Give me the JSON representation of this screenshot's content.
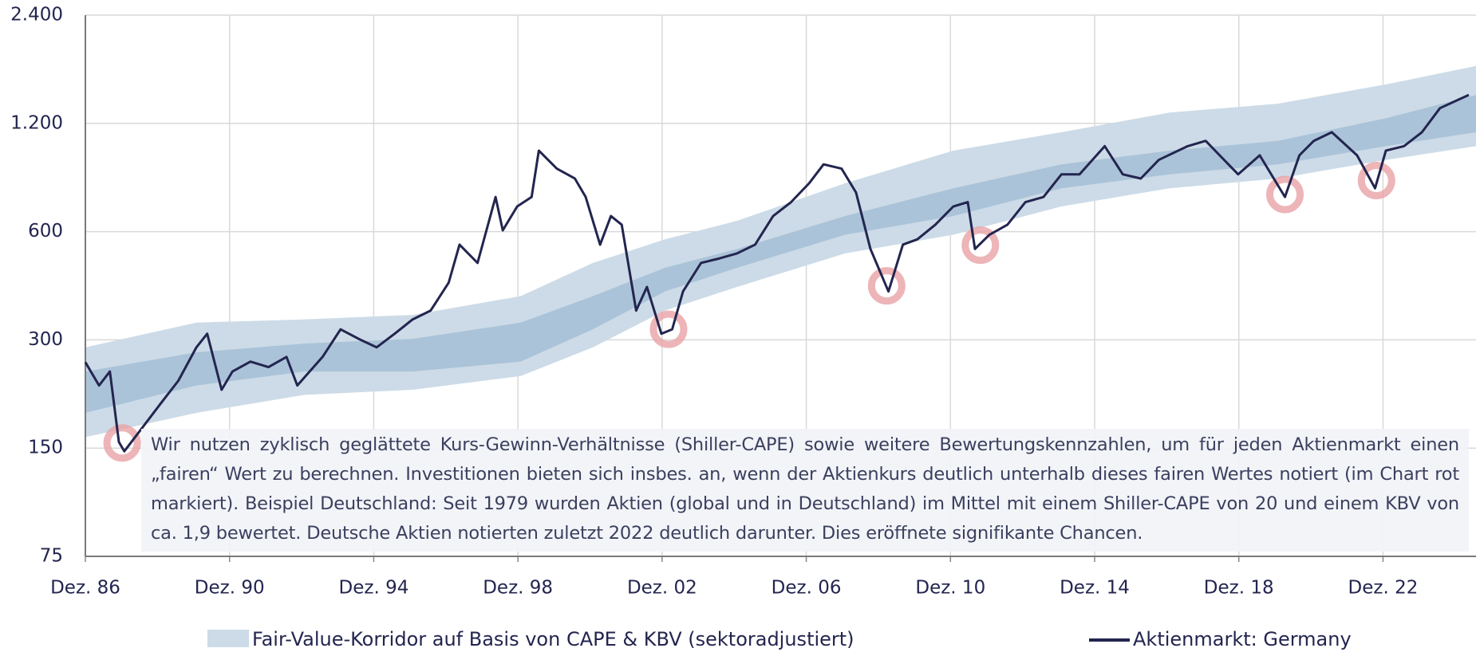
{
  "chart_data": {
    "type": "line",
    "yscale": "log",
    "ylim": [
      75,
      2400
    ],
    "yticks": [
      75,
      150,
      300,
      600,
      {
        "value": 1200,
        "label": "1.200"
      },
      {
        "value": 2400,
        "label": "2.400"
      }
    ],
    "xlim": [
      1986.92,
      2025.5
    ],
    "xticks": [
      {
        "value": 1986.92,
        "label": "Dez. 86"
      },
      {
        "value": 1990.92,
        "label": "Dez. 90"
      },
      {
        "value": 1994.92,
        "label": "Dez. 94"
      },
      {
        "value": 1998.92,
        "label": "Dez. 98"
      },
      {
        "value": 2002.92,
        "label": "Dez. 02"
      },
      {
        "value": 2006.92,
        "label": "Dez. 06"
      },
      {
        "value": 2010.92,
        "label": "Dez. 10"
      },
      {
        "value": 2014.92,
        "label": "Dez. 14"
      },
      {
        "value": 2018.92,
        "label": "Dez. 18"
      },
      {
        "value": 2022.92,
        "label": "Dez. 22"
      }
    ],
    "grid": true,
    "band": {
      "name": "Fair-Value-Korridor auf Basis von CAPE & KBV (sektoradjustiert)",
      "color_outer": "#ccdbe7",
      "color_inner": "#abc3d8",
      "x": [
        1986.92,
        1990,
        1993,
        1996,
        1999,
        2001,
        2003,
        2005,
        2008,
        2011,
        2014,
        2017,
        2020,
        2023,
        2025.5
      ],
      "upper": [
        286,
        335,
        342,
        352,
        397,
        491,
        571,
        643,
        818,
        1008,
        1134,
        1286,
        1361,
        1540,
        1733
      ],
      "lower": [
        161,
        188,
        211,
        218,
        238,
        286,
        362,
        421,
        522,
        588,
        705,
        792,
        843,
        950,
        1037
      ],
      "inner_upper": [
        245,
        277,
        293,
        302,
        335,
        397,
        476,
        537,
        663,
        792,
        923,
        1008,
        1073,
        1240,
        1440
      ],
      "inner_lower": [
        188,
        224,
        245,
        245,
        261,
        321,
        409,
        476,
        588,
        663,
        792,
        866,
        923,
        1037,
        1134
      ]
    },
    "series": [
      {
        "name": "Aktienmarkt: Germany",
        "color": "#23254f",
        "x": [
          1986.92,
          1987.3,
          1987.6,
          1987.85,
          1988.0,
          1988.5,
          1989.0,
          1989.5,
          1990.0,
          1990.3,
          1990.7,
          1991.0,
          1991.5,
          1992.0,
          1992.5,
          1992.8,
          1993.5,
          1994.0,
          1994.5,
          1995.0,
          1995.5,
          1996.0,
          1996.5,
          1997.0,
          1997.3,
          1997.8,
          1998.3,
          1998.5,
          1998.9,
          1999.3,
          1999.5,
          2000.0,
          2000.5,
          2000.8,
          2001.2,
          2001.5,
          2001.8,
          2002.2,
          2002.5,
          2002.9,
          2003.2,
          2003.5,
          2004.0,
          2004.5,
          2005.0,
          2005.5,
          2006.0,
          2006.5,
          2007.0,
          2007.4,
          2007.9,
          2008.3,
          2008.7,
          2009.2,
          2009.6,
          2010.0,
          2010.5,
          2011.0,
          2011.4,
          2011.6,
          2012.0,
          2012.5,
          2013.0,
          2013.5,
          2014.0,
          2014.5,
          2015.2,
          2015.7,
          2016.2,
          2016.7,
          2017.5,
          2018.0,
          2018.9,
          2019.5,
          2020.2,
          2020.6,
          2021.0,
          2021.5,
          2022.2,
          2022.7,
          2023.0,
          2023.5,
          2024.0,
          2024.5,
          2025.3
        ],
        "values": [
          260,
          224,
          245,
          156,
          147,
          171,
          199,
          231,
          286,
          312,
          218,
          245,
          261,
          252,
          269,
          224,
          269,
          321,
          302,
          286,
          312,
          342,
          362,
          433,
          552,
          491,
          749,
          605,
          705,
          749,
          1008,
          898,
          843,
          749,
          552,
          663,
          627,
          362,
          421,
          312,
          321,
          409,
          491,
          505,
          522,
          552,
          663,
          725,
          818,
          923,
          898,
          771,
          537,
          409,
          552,
          571,
          627,
          705,
          725,
          537,
          588,
          627,
          725,
          749,
          866,
          866,
          1037,
          866,
          843,
          950,
          1037,
          1073,
          866,
          978,
          749,
          978,
          1073,
          1134,
          978,
          792,
          1008,
          1037,
          1134,
          1323,
          1440
        ]
      }
    ],
    "highlights": {
      "color": "#e8a3a6",
      "x": [
        1987.94,
        2003.1,
        2009.15,
        2011.75,
        2020.2,
        2022.74
      ],
      "values": [
        155,
        321,
        424,
        550,
        761,
        832
      ]
    },
    "annotation": "Wir nutzen zyklisch geglättete Kurs-Gewinn-Verhältnisse (Shiller-CAPE) sowie weitere Bewertungskennzahlen, um für jeden Aktienmarkt einen „fairen“ Wert zu berechnen. Investitionen bieten sich insbes. an, wenn der Aktienkurs deutlich unterhalb dieses fairen Wertes notiert (im Chart rot markiert). Beispiel Deutschland: Seit 1979 wurden Aktien (global und in Deutschland) im Mittel mit einem Shiller-CAPE von 20 und einem KBV von ca. 1,9 bewertet. Deutsche Aktien notierten zuletzt 2022 deutlich darunter. Dies eröffnete signifikante Chancen."
  }
}
